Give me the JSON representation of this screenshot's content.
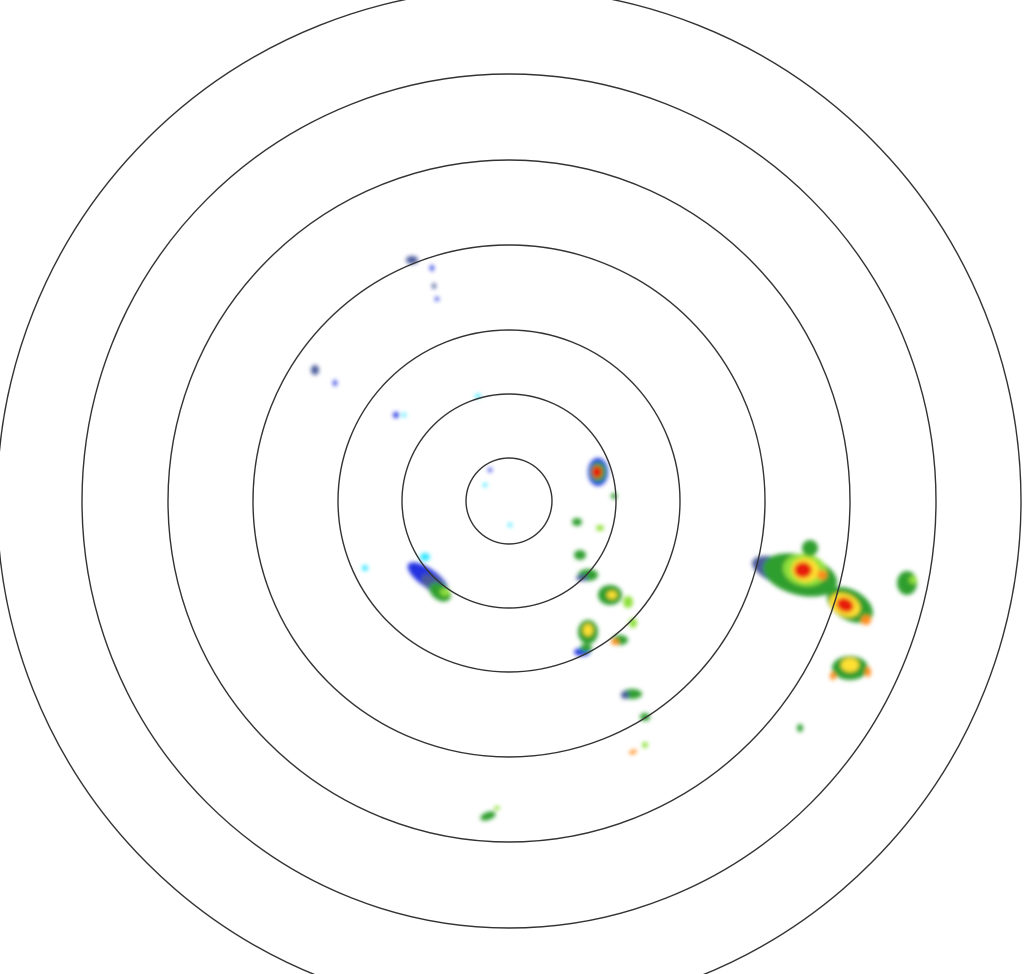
{
  "radar": {
    "range_ring_count": 7,
    "ring_color": "#333333",
    "background_color": "#ffffff",
    "reflectivity_colors": {
      "very_light": "#33e5ff",
      "light": "#2030e0",
      "light_grey_blue": "#4a5a9a",
      "moderate": "#2f9e2f",
      "moderate_high": "#8ee03a",
      "high": "#ffe030",
      "heavy": "#ff8c1a",
      "intense": "#e81a0a"
    }
  }
}
